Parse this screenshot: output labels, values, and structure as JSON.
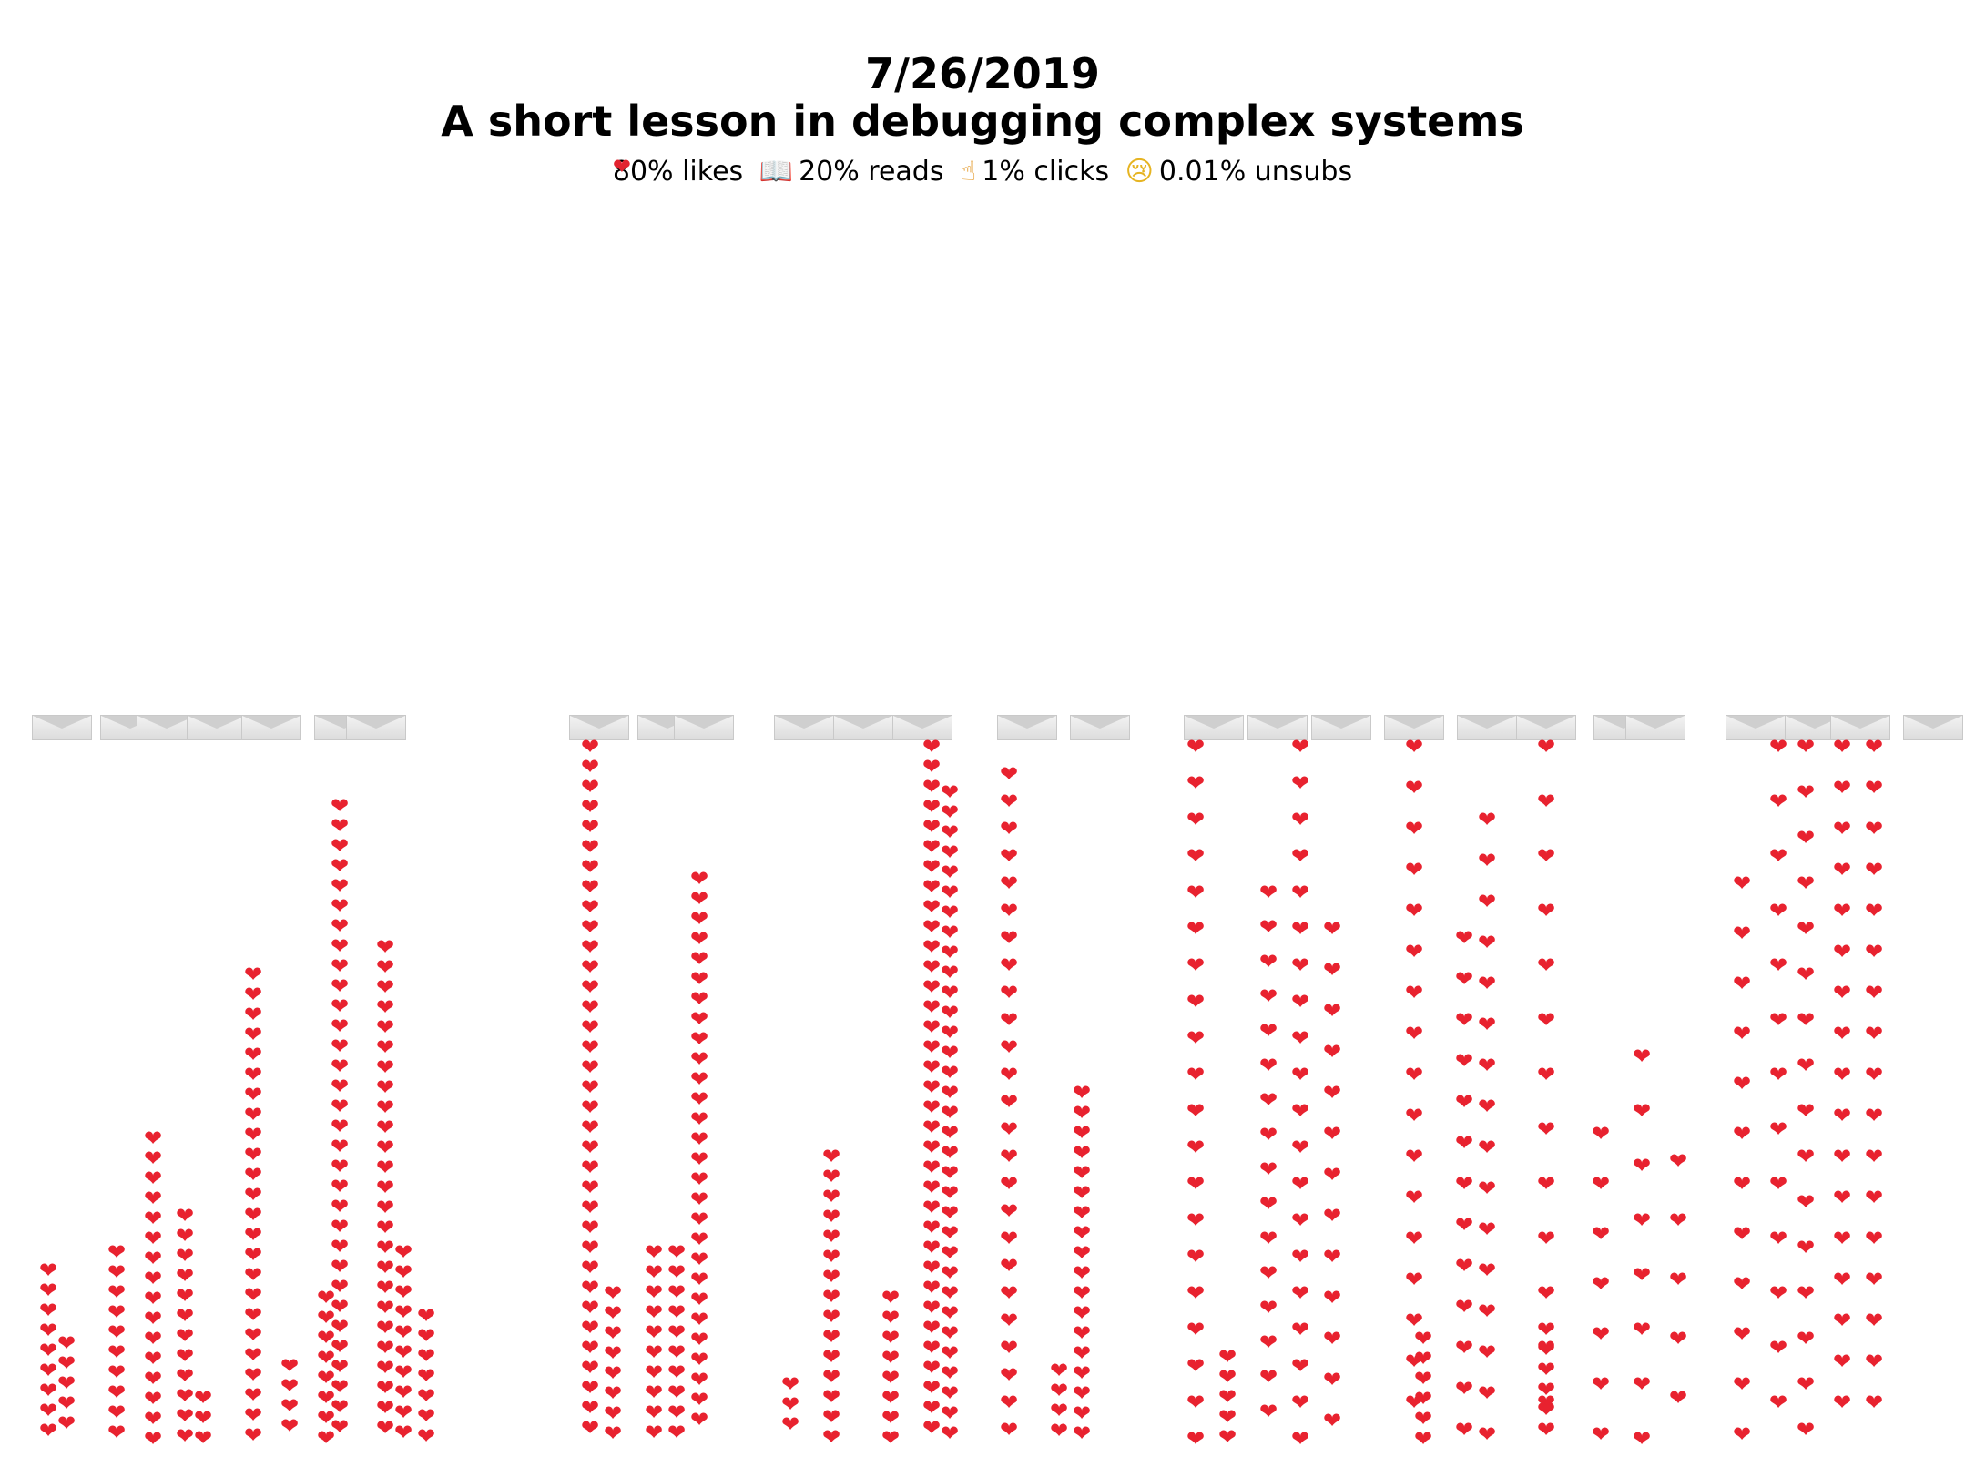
{
  "header": {
    "date": "7/26/2019",
    "title": "A short lesson in debugging complex systems"
  },
  "stats": [
    {
      "icon": "heart-icon",
      "glyph": "❤",
      "label": "80% likes"
    },
    {
      "icon": "book-icon",
      "glyph": "📖",
      "label": "20% reads"
    },
    {
      "icon": "pointing-finger-icon",
      "glyph": "☝",
      "label": "1% clicks"
    },
    {
      "icon": "sad-face-icon",
      "glyph": "😢",
      "label": "0.01% unsubs"
    }
  ],
  "colors": {
    "heart": "#e8222f",
    "text": "#000000",
    "background": "#ffffff"
  }
}
